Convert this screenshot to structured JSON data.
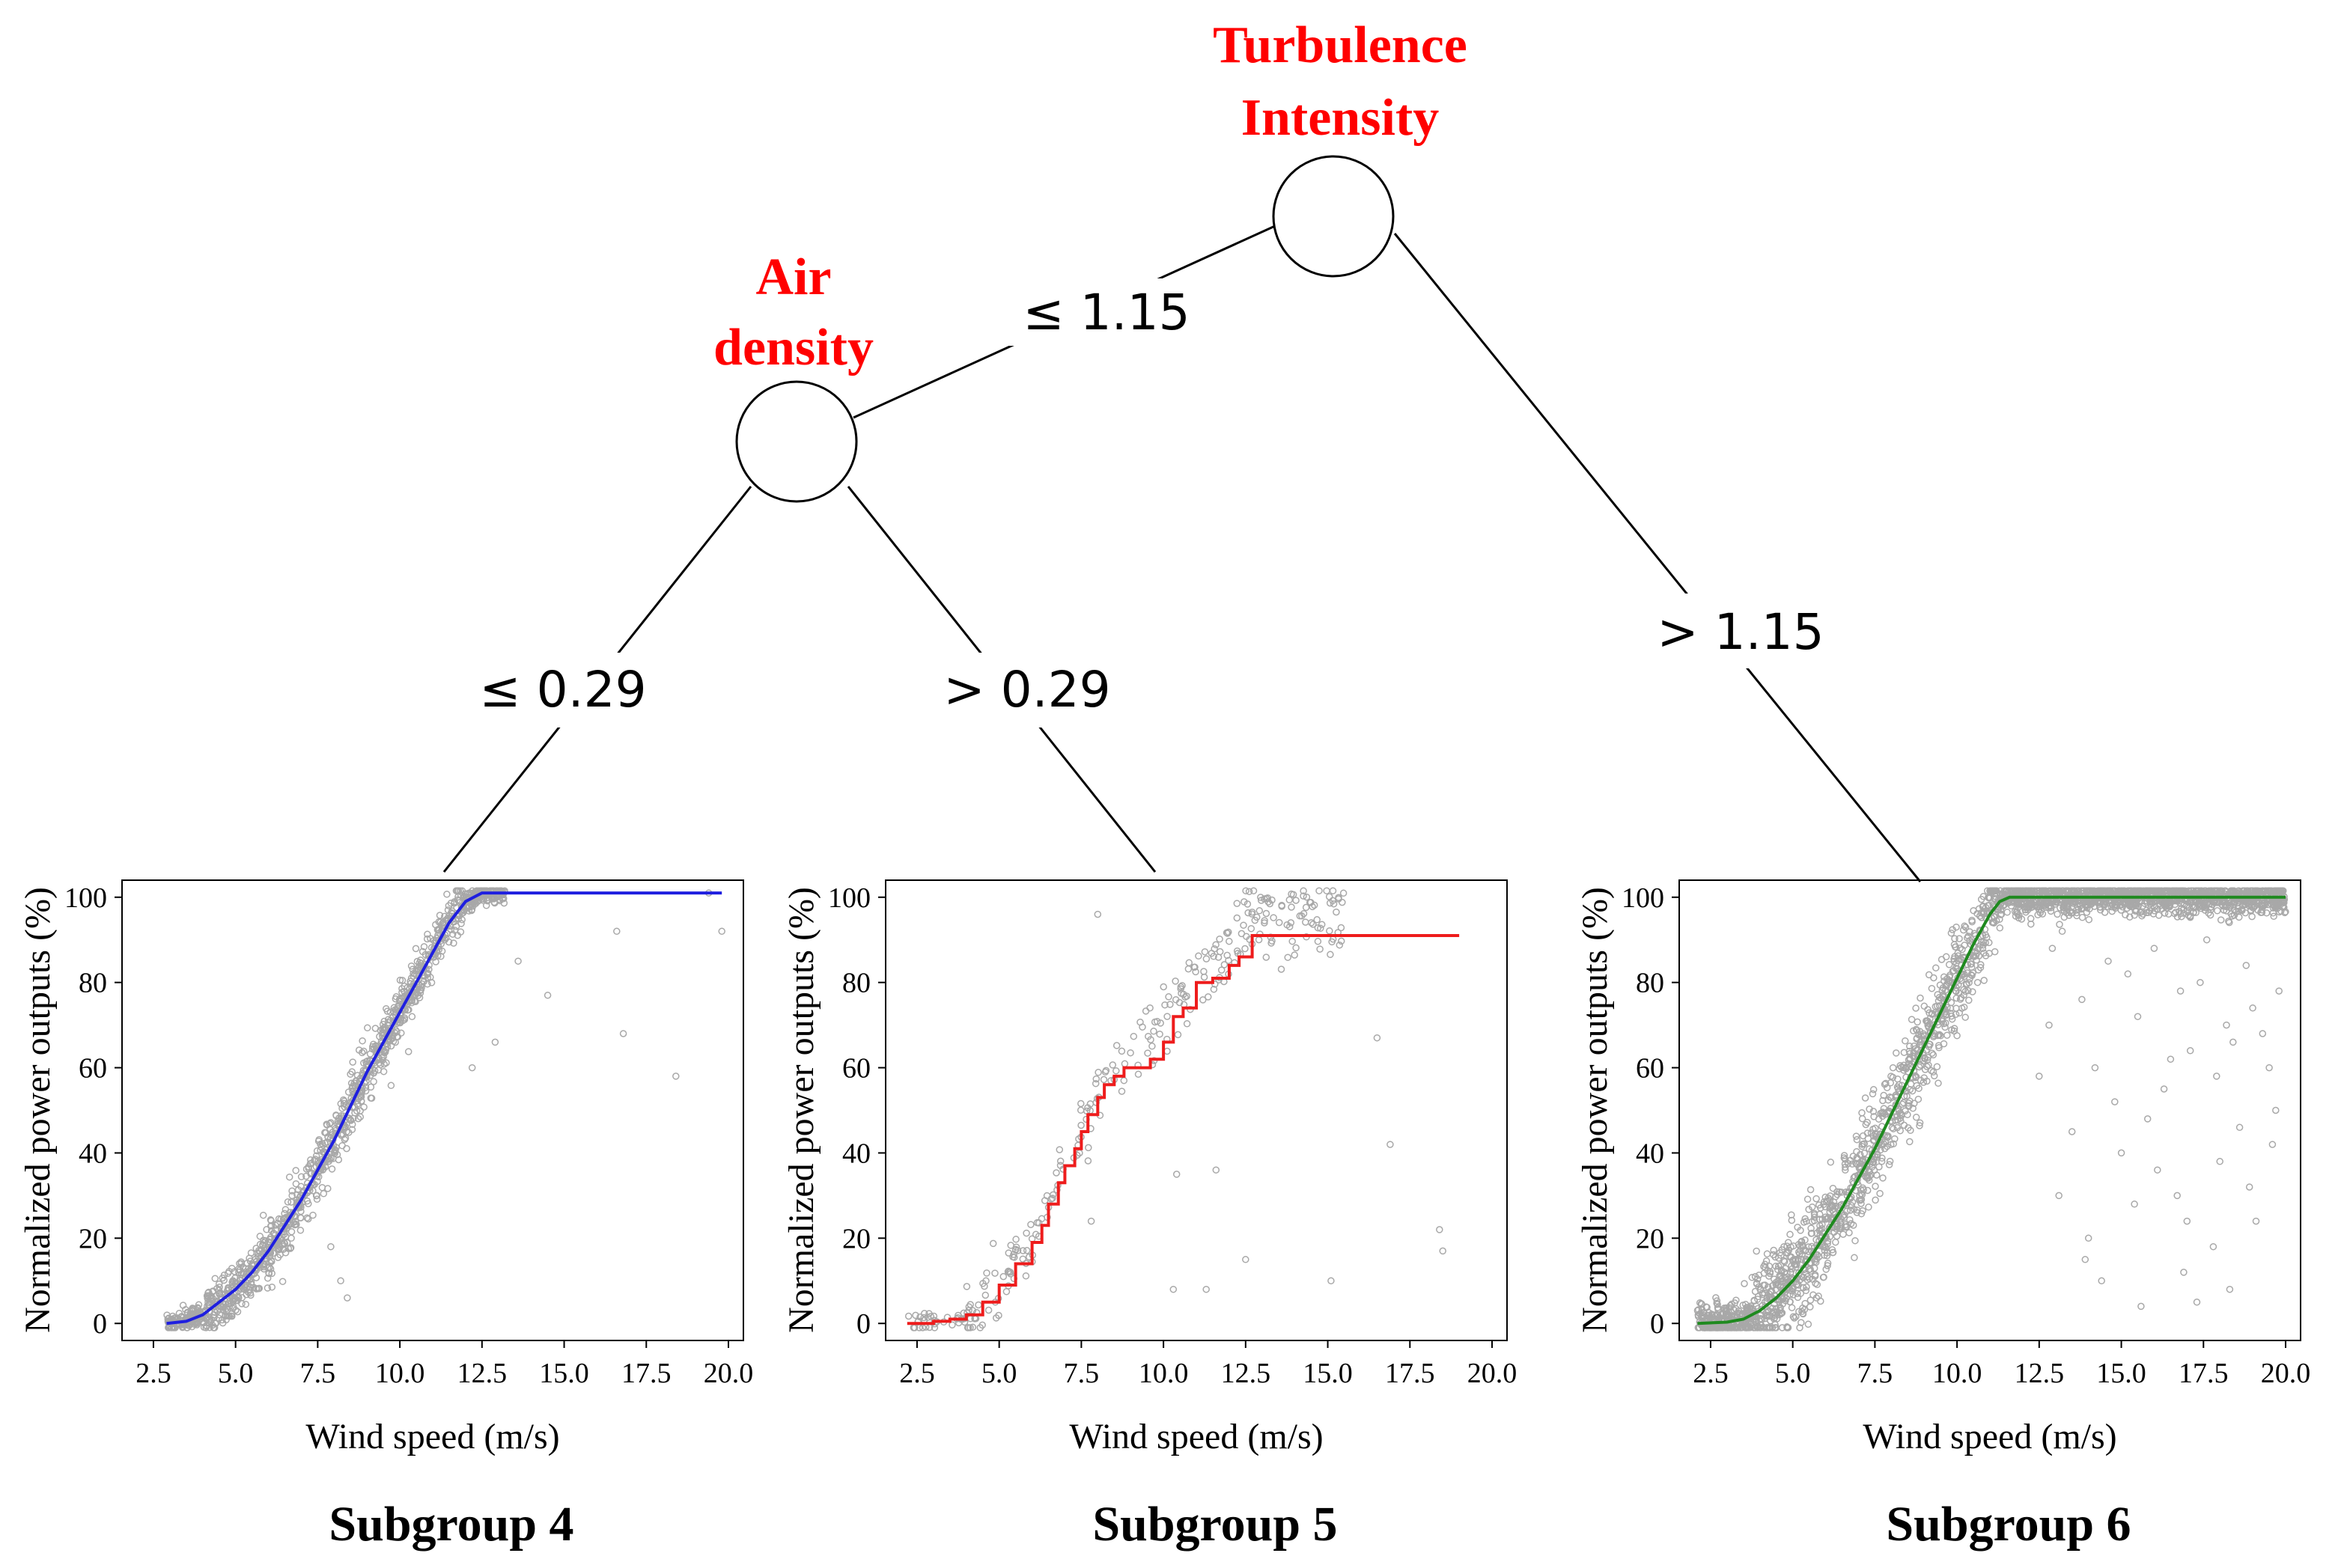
{
  "tree": {
    "root": {
      "label_lines": [
        "Turbulence",
        "Intensity"
      ]
    },
    "left": {
      "label_lines": [
        "Air",
        "density"
      ]
    },
    "edges": {
      "root_left": "≤ 1.15",
      "root_right": "> 1.15",
      "left_left": "≤ 0.29",
      "left_right": "> 0.29"
    }
  },
  "chart_data": [
    {
      "type": "scatter",
      "title": "Subgroup 4",
      "xlabel": "Wind speed (m/s)",
      "ylabel": "Normalized power outputs (%)",
      "xlim": [
        2,
        20
      ],
      "ylim": [
        -4,
        104
      ],
      "xticks": [
        "2.5",
        "5.0",
        "7.5",
        "10.0",
        "12.5",
        "15.0",
        "17.5",
        "20.0"
      ],
      "yticks": [
        "0",
        "20",
        "40",
        "60",
        "80",
        "100"
      ],
      "fit_color": "#1f1fdf",
      "scatter_color": "#a8a8a8",
      "fit_curve": {
        "x": [
          2.9,
          3.5,
          4.0,
          4.5,
          5.0,
          5.5,
          6.0,
          6.5,
          7.0,
          7.5,
          8.0,
          8.5,
          9.0,
          9.5,
          10.0,
          10.5,
          11.0,
          11.5,
          12.0,
          12.5,
          15.0,
          17.5,
          19.8
        ],
        "y": [
          0,
          0.5,
          2,
          5,
          8,
          12,
          17,
          23,
          29,
          36,
          43,
          51,
          59,
          66,
          73,
          80,
          87,
          94,
          99,
          101,
          101,
          101,
          101
        ]
      },
      "sparse_points": {
        "x": [
          7.9,
          8.2,
          8.4,
          12.2,
          12.9,
          13.6,
          14.5,
          16.6,
          16.8,
          18.4,
          19.8,
          19.4
        ],
        "y": [
          18,
          10,
          6,
          60,
          66,
          85,
          77,
          92,
          68,
          58,
          92,
          101
        ]
      }
    },
    {
      "type": "scatter",
      "title": "Subgroup 5",
      "xlabel": "Wind speed (m/s)",
      "ylabel": "Normalized power outputs (%)",
      "xlim": [
        2,
        20
      ],
      "ylim": [
        -4,
        104
      ],
      "xticks": [
        "2.5",
        "5.0",
        "7.5",
        "10.0",
        "12.5",
        "15.0",
        "17.5",
        "20.0"
      ],
      "yticks": [
        "0",
        "20",
        "40",
        "60",
        "80",
        "100"
      ],
      "fit_color": "#ee1c1c",
      "scatter_color": "#a8a8a8",
      "fit_curve": {
        "x": [
          2.2,
          3.0,
          3.5,
          4.0,
          4.5,
          5.0,
          5.5,
          6.0,
          6.3,
          6.5,
          6.8,
          7.0,
          7.3,
          7.5,
          7.7,
          8.0,
          8.2,
          8.5,
          8.8,
          9.2,
          9.6,
          10.0,
          10.3,
          10.6,
          11.0,
          11.5,
          12.0,
          12.3,
          12.7,
          19.0
        ],
        "y": [
          0,
          0.5,
          1,
          2,
          5,
          9,
          14,
          19,
          23,
          28,
          33,
          37,
          41,
          45,
          49,
          53,
          56,
          58,
          60,
          60,
          62,
          66,
          72,
          74,
          80,
          81,
          84,
          86,
          91,
          91
        ]
      },
      "sparse_points": {
        "x": [
          8.0,
          10.4,
          11.3,
          7.8,
          11.6,
          14.5,
          16.5,
          16.9,
          18.4,
          18.5,
          15.1,
          12.5,
          10.3
        ],
        "y": [
          96,
          35,
          8,
          24,
          36,
          94,
          67,
          42,
          22,
          17,
          10,
          15,
          8
        ]
      }
    },
    {
      "type": "scatter",
      "title": "Subgroup 6",
      "xlabel": "Wind speed (m/s)",
      "ylabel": "Normalized power outputs (%)",
      "xlim": [
        2,
        20
      ],
      "ylim": [
        -4,
        104
      ],
      "xticks": [
        "2.5",
        "5.0",
        "7.5",
        "10.0",
        "12.5",
        "15.0",
        "17.5",
        "20.0"
      ],
      "yticks": [
        "0",
        "20",
        "40",
        "60",
        "80",
        "100"
      ],
      "fit_color": "#1f8a1f",
      "scatter_color": "#a8a8a8",
      "fit_curve": {
        "x": [
          2.1,
          3.0,
          3.5,
          4.0,
          4.5,
          5.0,
          5.5,
          6.0,
          6.5,
          7.0,
          7.5,
          8.0,
          8.5,
          9.0,
          9.5,
          10.0,
          10.5,
          11.0,
          11.3,
          11.6,
          12.0,
          15.0,
          17.5,
          20.0
        ],
        "y": [
          0,
          0.3,
          1,
          3,
          6,
          10,
          15,
          21,
          27,
          34,
          41,
          49,
          57,
          65,
          73,
          81,
          89,
          96,
          99,
          100,
          100,
          100,
          100,
          100
        ]
      },
      "sparse_points": {
        "x": [
          13.2,
          13.8,
          14.2,
          14.6,
          15.0,
          15.5,
          16.0,
          16.3,
          16.7,
          17.1,
          17.4,
          17.8,
          18.2,
          18.6,
          19.0,
          19.5,
          19.8,
          13.5,
          14.0,
          15.2,
          16.1,
          16.9,
          17.6,
          18.4,
          19.1,
          19.7,
          12.8,
          13.1,
          14.4,
          15.8,
          16.5,
          17.3,
          18.0,
          18.8,
          19.3,
          12.5,
          13.9,
          15.4,
          16.8,
          18.3,
          19.6,
          14.8,
          17.0,
          18.9,
          12.9,
          15.6,
          17.9
        ],
        "y": [
          92,
          76,
          60,
          85,
          40,
          72,
          88,
          55,
          30,
          64,
          80,
          18,
          70,
          46,
          74,
          60,
          78,
          45,
          20,
          82,
          36,
          12,
          90,
          66,
          24,
          50,
          70,
          30,
          10,
          48,
          62,
          5,
          38,
          84,
          68,
          58,
          15,
          28,
          78,
          8,
          42,
          52,
          24,
          32,
          88,
          4,
          58
        ]
      }
    }
  ]
}
